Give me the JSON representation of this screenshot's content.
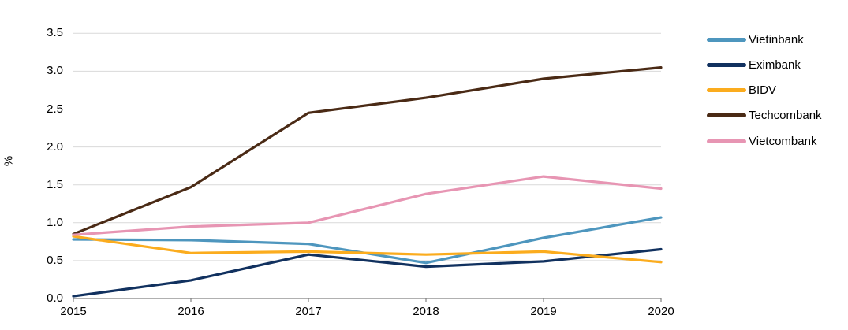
{
  "chart_data": {
    "type": "line",
    "x": [
      "2015",
      "2016",
      "2017",
      "2018",
      "2019",
      "2020"
    ],
    "series": [
      {
        "name": "Vietinbank",
        "color": "#4E96BE",
        "values": [
          0.78,
          0.77,
          0.72,
          0.47,
          0.8,
          1.07
        ]
      },
      {
        "name": "Eximbank",
        "color": "#11315F",
        "values": [
          0.03,
          0.24,
          0.58,
          0.42,
          0.49,
          0.65
        ]
      },
      {
        "name": "BIDV",
        "color": "#FBAC1E",
        "values": [
          0.82,
          0.6,
          0.62,
          0.58,
          0.62,
          0.48
        ]
      },
      {
        "name": "Techcombank",
        "color": "#4A2A15",
        "values": [
          0.85,
          1.47,
          2.45,
          2.65,
          2.9,
          3.05
        ]
      },
      {
        "name": "Vietcombank",
        "color": "#E795B3",
        "values": [
          0.84,
          0.95,
          1.0,
          1.38,
          1.61,
          1.45
        ]
      }
    ],
    "title": "",
    "xlabel": "",
    "ylabel": "%",
    "ylim": [
      0,
      3.5
    ],
    "yticks": [
      {
        "label": "0.0",
        "value": 0.0
      },
      {
        "label": "0.5",
        "value": 0.5
      },
      {
        "label": "1.0",
        "value": 1.0
      },
      {
        "label": "1.5",
        "value": 1.5
      },
      {
        "label": "2.0",
        "value": 2.0
      },
      {
        "label": "2.5",
        "value": 2.5
      },
      {
        "label": "3.0",
        "value": 3.0
      },
      {
        "label": "3.5",
        "value": 3.5
      }
    ],
    "grid": true,
    "legend_position": "right",
    "colors": {
      "background": "#FFFFFF",
      "gridline": "#D9D9D9",
      "axis": "#808080",
      "tick": "#808080",
      "text": "#000000"
    }
  }
}
